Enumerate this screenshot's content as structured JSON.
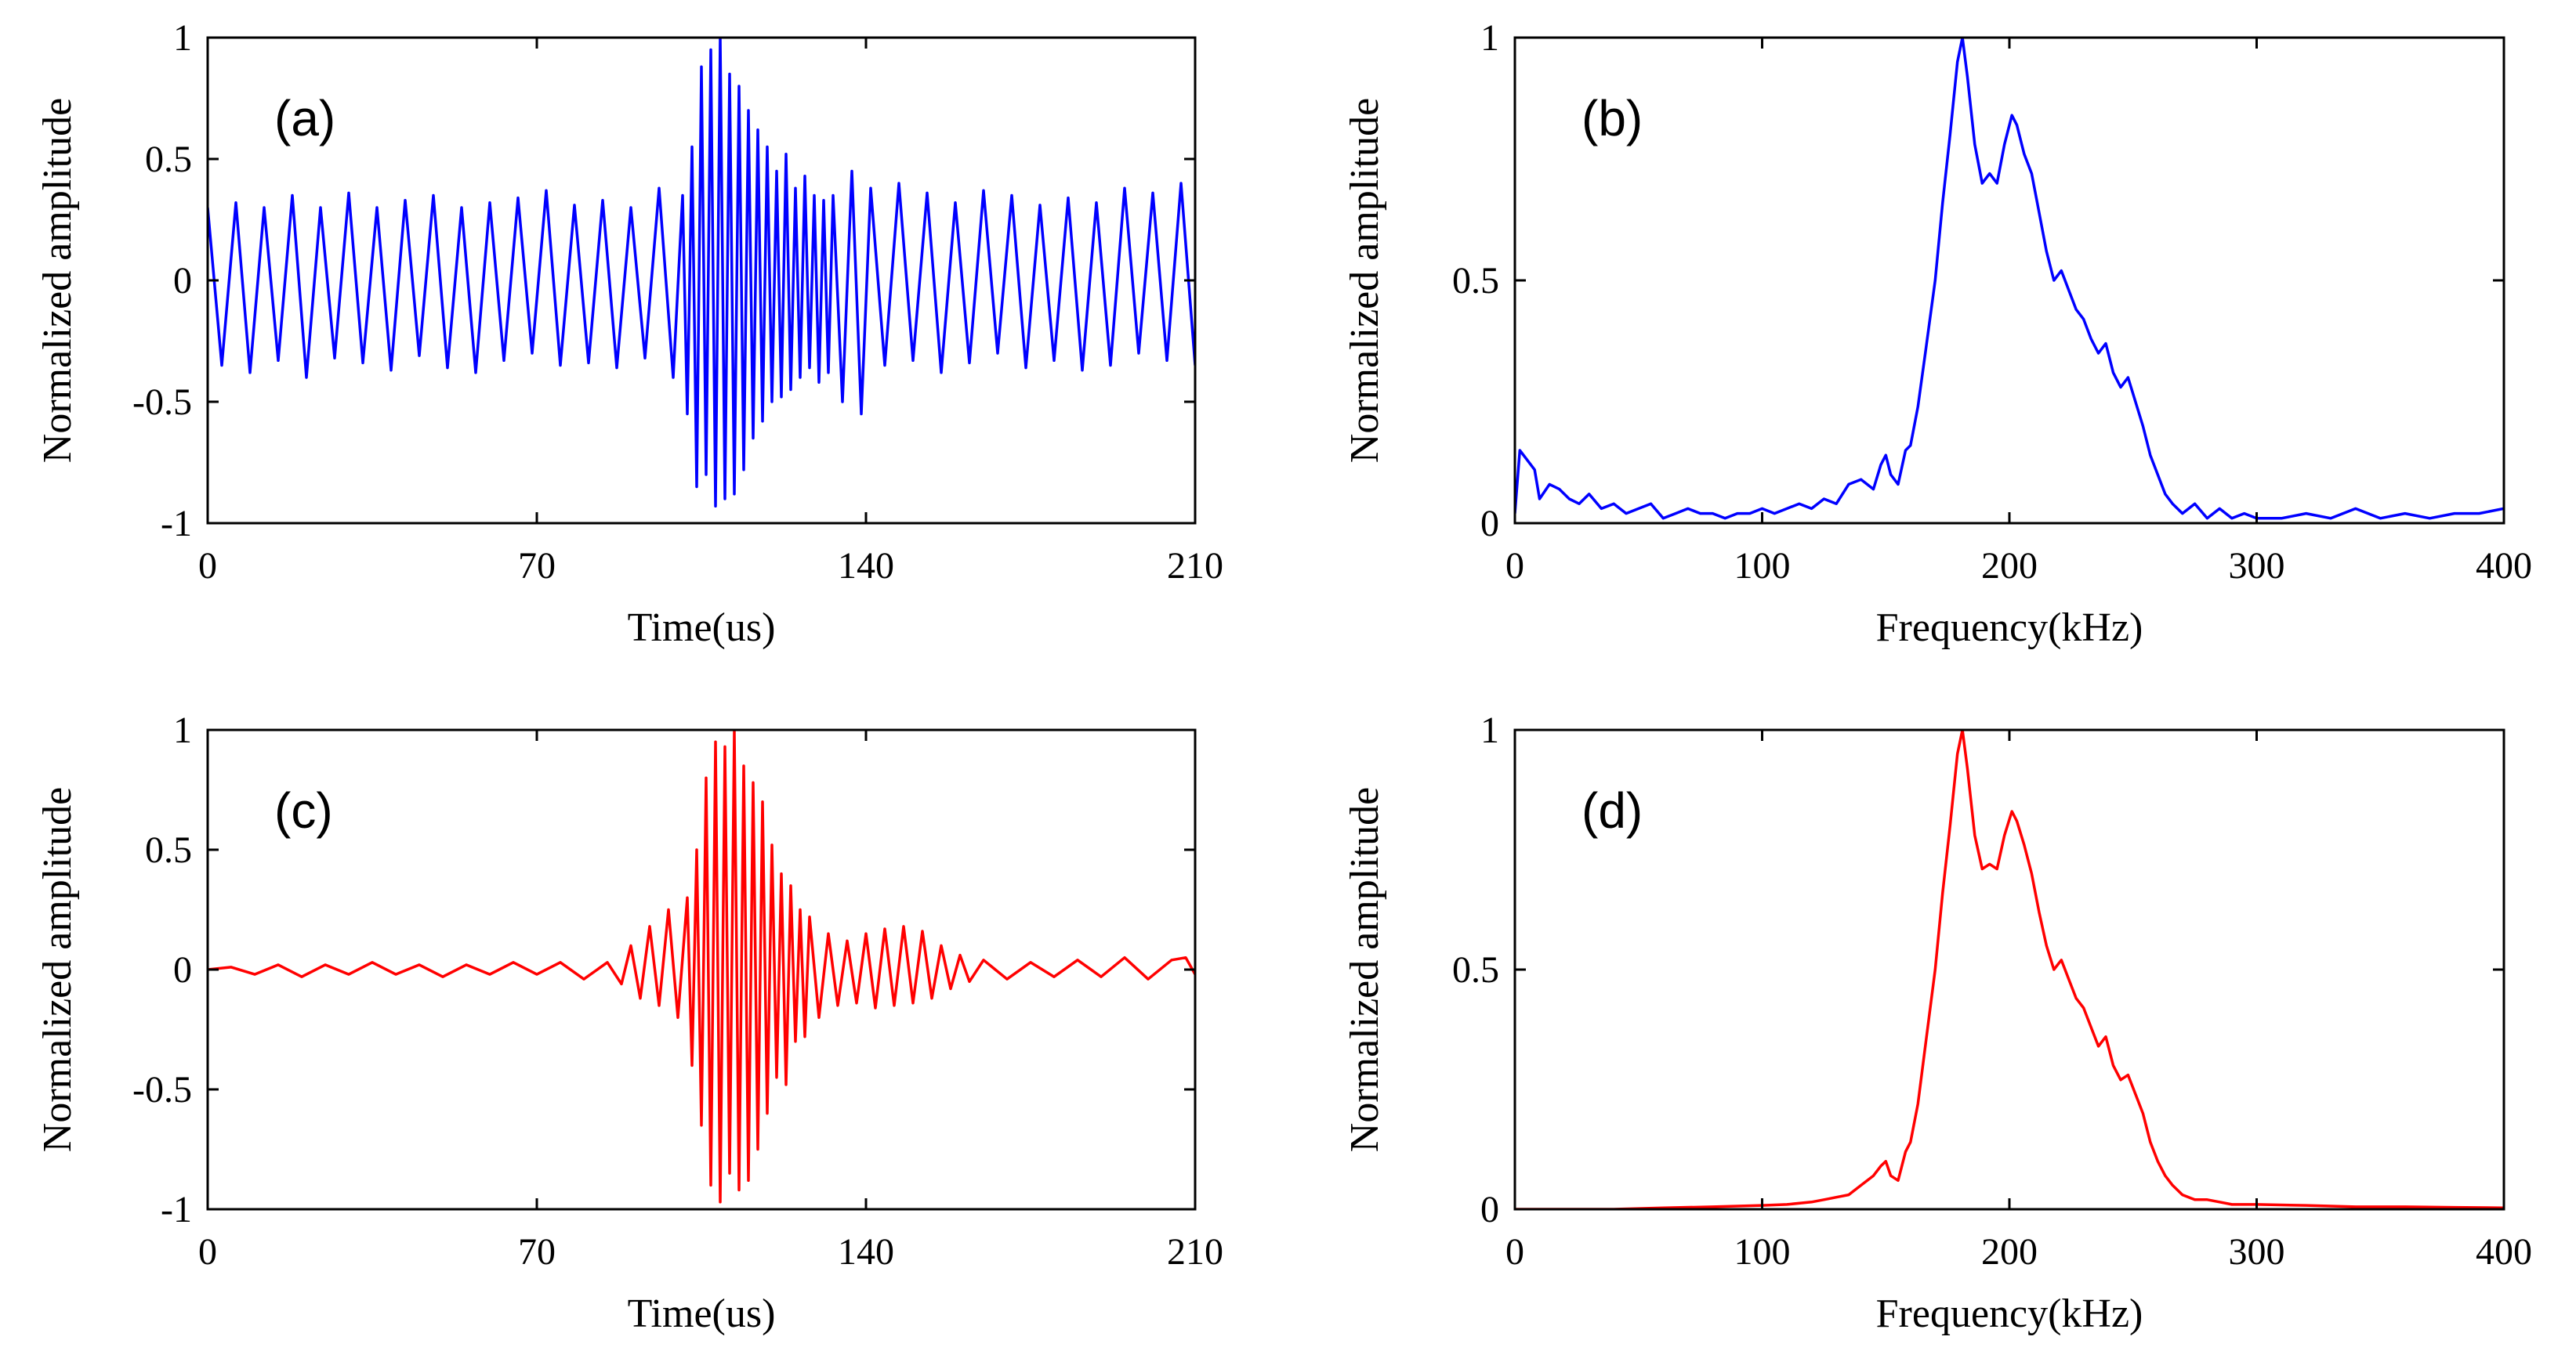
{
  "chart_data": [
    {
      "id": "a",
      "type": "line",
      "panel_label": "(a)",
      "xlabel": "Time(us)",
      "ylabel": "Normalized amplitude",
      "xlim": [
        0,
        210
      ],
      "ylim": [
        -1,
        1
      ],
      "xticks": [
        0,
        70,
        140,
        210
      ],
      "yticks": [
        -1,
        -0.5,
        0,
        0.5,
        1
      ],
      "xtick_labels": [
        "0",
        "70",
        "140",
        "210"
      ],
      "ytick_labels": [
        "-1",
        "-0.5",
        "0",
        "0.5",
        "1"
      ],
      "color": "#0000ff",
      "series": [
        {
          "x": [
            0,
            3,
            6,
            9,
            12,
            15,
            18,
            21,
            24,
            27,
            30,
            33,
            36,
            39,
            42,
            45,
            48,
            51,
            54,
            57,
            60,
            63,
            66,
            69,
            72,
            75,
            78,
            81,
            84,
            87,
            90,
            93,
            96,
            99,
            101,
            102,
            103,
            104,
            105,
            106,
            107,
            108,
            109,
            110,
            111,
            112,
            113,
            114,
            115,
            116,
            117,
            118,
            119,
            120,
            121,
            122,
            123,
            124,
            125,
            126,
            127,
            128,
            129,
            130,
            131,
            132,
            133,
            135,
            137,
            139,
            141,
            144,
            147,
            150,
            153,
            156,
            159,
            162,
            165,
            168,
            171,
            174,
            177,
            180,
            183,
            186,
            189,
            192,
            195,
            198,
            201,
            204,
            207,
            210
          ],
          "y": [
            0.3,
            -0.35,
            0.32,
            -0.38,
            0.3,
            -0.33,
            0.35,
            -0.4,
            0.3,
            -0.32,
            0.36,
            -0.34,
            0.3,
            -0.37,
            0.33,
            -0.31,
            0.35,
            -0.36,
            0.3,
            -0.38,
            0.32,
            -0.33,
            0.34,
            -0.3,
            0.37,
            -0.35,
            0.31,
            -0.34,
            0.33,
            -0.36,
            0.3,
            -0.32,
            0.38,
            -0.4,
            0.35,
            -0.55,
            0.55,
            -0.85,
            0.88,
            -0.8,
            0.95,
            -0.93,
            1.0,
            -0.9,
            0.85,
            -0.88,
            0.8,
            -0.78,
            0.7,
            -0.65,
            0.62,
            -0.58,
            0.55,
            -0.5,
            0.45,
            -0.48,
            0.52,
            -0.45,
            0.38,
            -0.4,
            0.43,
            -0.36,
            0.35,
            -0.42,
            0.33,
            -0.38,
            0.35,
            -0.5,
            0.45,
            -0.55,
            0.38,
            -0.35,
            0.4,
            -0.33,
            0.36,
            -0.38,
            0.32,
            -0.34,
            0.37,
            -0.3,
            0.35,
            -0.36,
            0.31,
            -0.33,
            0.34,
            -0.37,
            0.32,
            -0.35,
            0.38,
            -0.3,
            0.36,
            -0.33,
            0.4,
            -0.35
          ]
        }
      ]
    },
    {
      "id": "b",
      "type": "line",
      "panel_label": "(b)",
      "xlabel": "Frequency(kHz)",
      "ylabel": "Normalized amplitude",
      "xlim": [
        0,
        400
      ],
      "ylim": [
        0,
        1
      ],
      "xticks": [
        0,
        100,
        200,
        300,
        400
      ],
      "yticks": [
        0,
        0.5,
        1
      ],
      "xtick_labels": [
        "0",
        "100",
        "200",
        "300",
        "400"
      ],
      "ytick_labels": [
        "0",
        "0.5",
        "1"
      ],
      "color": "#0000ff",
      "series": [
        {
          "x": [
            0,
            2,
            5,
            8,
            10,
            14,
            18,
            22,
            26,
            30,
            35,
            40,
            45,
            50,
            55,
            60,
            65,
            70,
            75,
            80,
            85,
            90,
            95,
            100,
            105,
            110,
            115,
            120,
            125,
            130,
            135,
            140,
            145,
            148,
            150,
            152,
            155,
            158,
            160,
            163,
            166,
            170,
            173,
            176,
            179,
            181,
            183,
            186,
            189,
            192,
            195,
            198,
            201,
            203,
            206,
            209,
            212,
            215,
            218,
            221,
            224,
            227,
            230,
            233,
            236,
            239,
            242,
            245,
            248,
            251,
            254,
            257,
            260,
            263,
            266,
            270,
            275,
            280,
            285,
            290,
            295,
            300,
            310,
            320,
            330,
            340,
            350,
            360,
            370,
            380,
            390,
            400
          ],
          "y": [
            0.02,
            0.15,
            0.13,
            0.11,
            0.05,
            0.08,
            0.07,
            0.05,
            0.04,
            0.06,
            0.03,
            0.04,
            0.02,
            0.03,
            0.04,
            0.01,
            0.02,
            0.03,
            0.02,
            0.02,
            0.01,
            0.02,
            0.02,
            0.03,
            0.02,
            0.03,
            0.04,
            0.03,
            0.05,
            0.04,
            0.08,
            0.09,
            0.07,
            0.12,
            0.14,
            0.1,
            0.08,
            0.15,
            0.16,
            0.24,
            0.35,
            0.5,
            0.66,
            0.8,
            0.95,
            1.0,
            0.92,
            0.78,
            0.7,
            0.72,
            0.7,
            0.78,
            0.84,
            0.82,
            0.76,
            0.72,
            0.64,
            0.56,
            0.5,
            0.52,
            0.48,
            0.44,
            0.42,
            0.38,
            0.35,
            0.37,
            0.31,
            0.28,
            0.3,
            0.25,
            0.2,
            0.14,
            0.1,
            0.06,
            0.04,
            0.02,
            0.04,
            0.01,
            0.03,
            0.01,
            0.02,
            0.01,
            0.01,
            0.02,
            0.01,
            0.03,
            0.01,
            0.02,
            0.01,
            0.02,
            0.02,
            0.03
          ]
        }
      ]
    },
    {
      "id": "c",
      "type": "line",
      "panel_label": "(c)",
      "xlabel": "Time(us)",
      "ylabel": "Normalized amplitude",
      "xlim": [
        0,
        210
      ],
      "ylim": [
        -1,
        1
      ],
      "xticks": [
        0,
        70,
        140,
        210
      ],
      "yticks": [
        -1,
        -0.5,
        0,
        0.5,
        1
      ],
      "xtick_labels": [
        "0",
        "70",
        "140",
        "210"
      ],
      "ytick_labels": [
        "-1",
        "-0.5",
        "0",
        "0.5",
        "1"
      ],
      "color": "#ff0000",
      "series": [
        {
          "x": [
            0,
            5,
            10,
            15,
            20,
            25,
            30,
            35,
            40,
            45,
            50,
            55,
            60,
            65,
            70,
            75,
            80,
            85,
            88,
            90,
            92,
            94,
            96,
            98,
            100,
            102,
            103,
            104,
            105,
            106,
            107,
            108,
            109,
            110,
            111,
            112,
            113,
            114,
            115,
            116,
            117,
            118,
            119,
            120,
            121,
            122,
            123,
            124,
            125,
            126,
            127,
            128,
            130,
            132,
            134,
            136,
            138,
            140,
            142,
            144,
            146,
            148,
            150,
            152,
            154,
            156,
            158,
            160,
            162,
            165,
            170,
            175,
            180,
            185,
            190,
            195,
            200,
            205,
            208,
            210
          ],
          "y": [
            0,
            0.01,
            -0.02,
            0.02,
            -0.03,
            0.02,
            -0.02,
            0.03,
            -0.02,
            0.02,
            -0.03,
            0.02,
            -0.02,
            0.03,
            -0.02,
            0.03,
            -0.04,
            0.03,
            -0.06,
            0.1,
            -0.12,
            0.18,
            -0.15,
            0.25,
            -0.2,
            0.3,
            -0.4,
            0.5,
            -0.65,
            0.8,
            -0.9,
            0.95,
            -0.97,
            0.93,
            -0.85,
            1.0,
            -0.92,
            0.85,
            -0.88,
            0.78,
            -0.75,
            0.7,
            -0.6,
            0.52,
            -0.45,
            0.4,
            -0.48,
            0.35,
            -0.3,
            0.25,
            -0.28,
            0.22,
            -0.2,
            0.15,
            -0.15,
            0.12,
            -0.14,
            0.15,
            -0.16,
            0.17,
            -0.15,
            0.18,
            -0.14,
            0.16,
            -0.12,
            0.1,
            -0.08,
            0.06,
            -0.05,
            0.04,
            -0.04,
            0.03,
            -0.03,
            0.04,
            -0.03,
            0.05,
            -0.04,
            0.04,
            0.05,
            -0.02
          ]
        }
      ]
    },
    {
      "id": "d",
      "type": "line",
      "panel_label": "(d)",
      "xlabel": "Frequency(kHz)",
      "ylabel": "Normalized amplitude",
      "xlim": [
        0,
        400
      ],
      "ylim": [
        0,
        1
      ],
      "xticks": [
        0,
        100,
        200,
        300,
        400
      ],
      "yticks": [
        0,
        0.5,
        1
      ],
      "xtick_labels": [
        "0",
        "100",
        "200",
        "300",
        "400"
      ],
      "ytick_labels": [
        "0",
        "0.5",
        "1"
      ],
      "color": "#ff0000",
      "series": [
        {
          "x": [
            0,
            20,
            40,
            60,
            80,
            100,
            110,
            120,
            125,
            130,
            135,
            140,
            145,
            148,
            150,
            152,
            155,
            158,
            160,
            163,
            166,
            170,
            173,
            176,
            179,
            181,
            183,
            186,
            189,
            192,
            195,
            198,
            201,
            203,
            206,
            209,
            212,
            215,
            218,
            221,
            224,
            227,
            230,
            233,
            236,
            239,
            242,
            245,
            248,
            251,
            254,
            257,
            260,
            263,
            266,
            270,
            275,
            280,
            285,
            290,
            300,
            320,
            340,
            360,
            380,
            400
          ],
          "y": [
            0,
            0,
            0,
            0.003,
            0.005,
            0.008,
            0.01,
            0.015,
            0.02,
            0.025,
            0.03,
            0.05,
            0.07,
            0.09,
            0.1,
            0.07,
            0.06,
            0.12,
            0.14,
            0.22,
            0.34,
            0.5,
            0.66,
            0.8,
            0.95,
            1.0,
            0.92,
            0.78,
            0.71,
            0.72,
            0.71,
            0.78,
            0.83,
            0.81,
            0.76,
            0.7,
            0.62,
            0.55,
            0.5,
            0.52,
            0.48,
            0.44,
            0.42,
            0.38,
            0.34,
            0.36,
            0.3,
            0.27,
            0.28,
            0.24,
            0.2,
            0.14,
            0.1,
            0.07,
            0.05,
            0.03,
            0.02,
            0.02,
            0.015,
            0.01,
            0.01,
            0.008,
            0.005,
            0.005,
            0.004,
            0.003
          ]
        }
      ]
    }
  ]
}
